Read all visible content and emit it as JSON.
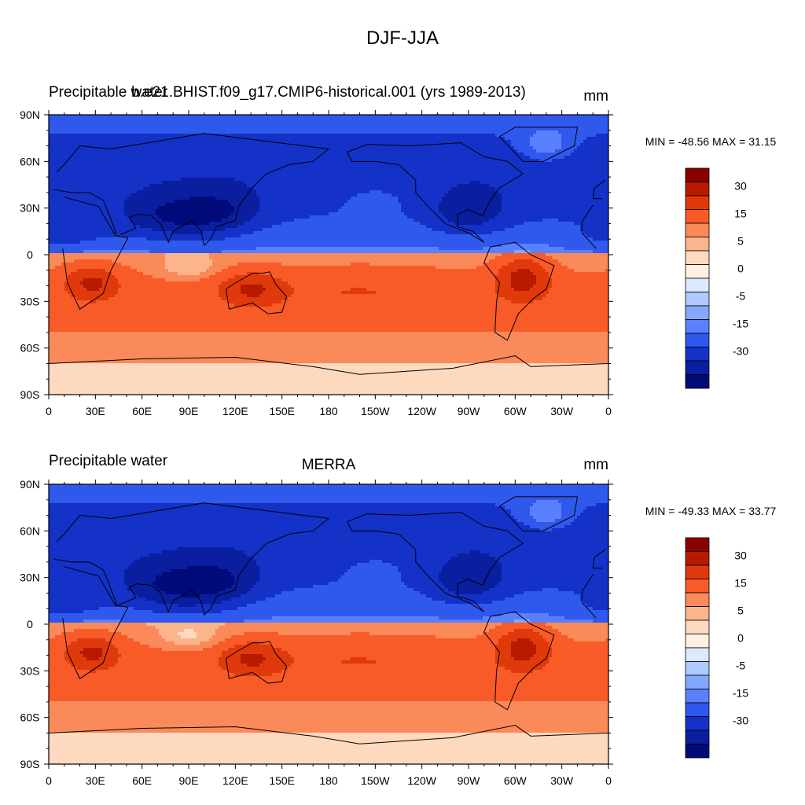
{
  "page": {
    "title": "DJF-JJA"
  },
  "chart_data": [
    {
      "type": "heatmap",
      "title_left": "Precipitable water",
      "title_center": "b.e21.BHIST.f09_g17.CMIP6-historical.001 (yrs 1989-2013)",
      "title_right": "mm",
      "min_max": "MIN = -48.56 MAX =  31.15",
      "variable": "Precipitable water",
      "units": "mm",
      "x_ticks": [
        "0",
        "30E",
        "60E",
        "90E",
        "120E",
        "150E",
        "180",
        "150W",
        "120W",
        "90W",
        "60W",
        "30W",
        "0"
      ],
      "y_ticks": [
        "90N",
        "60N",
        "30N",
        "0",
        "30S",
        "60S",
        "90S"
      ],
      "lon_range": [
        0,
        360
      ],
      "lat_range": [
        -90,
        90
      ],
      "min": -48.56,
      "max": 31.15
    },
    {
      "type": "heatmap",
      "title_left": "Precipitable water",
      "title_center": "MERRA",
      "title_right": "mm",
      "min_max": "MIN = -49.33 MAX =  33.77",
      "variable": "Precipitable water",
      "units": "mm",
      "x_ticks": [
        "0",
        "30E",
        "60E",
        "90E",
        "120E",
        "150E",
        "180",
        "150W",
        "120W",
        "90W",
        "60W",
        "30W",
        "0"
      ],
      "y_ticks": [
        "90N",
        "60N",
        "30N",
        "0",
        "30S",
        "60S",
        "90S"
      ],
      "lon_range": [
        0,
        360
      ],
      "lat_range": [
        -90,
        90
      ],
      "min": -49.33,
      "max": 33.77
    }
  ],
  "colorbar": {
    "labels": [
      "30",
      "15",
      "5",
      "0",
      "-5",
      "-15",
      "-30"
    ],
    "colors": [
      "#8b0000",
      "#b81a00",
      "#e03a0c",
      "#f85a28",
      "#fb8a5a",
      "#fcb48c",
      "#fdd9c0",
      "#fff0e2",
      "#dbeaff",
      "#aecaff",
      "#84a8ff",
      "#5a80ff",
      "#2f58ec",
      "#1432c8",
      "#0a1ea0",
      "#000a78"
    ]
  }
}
